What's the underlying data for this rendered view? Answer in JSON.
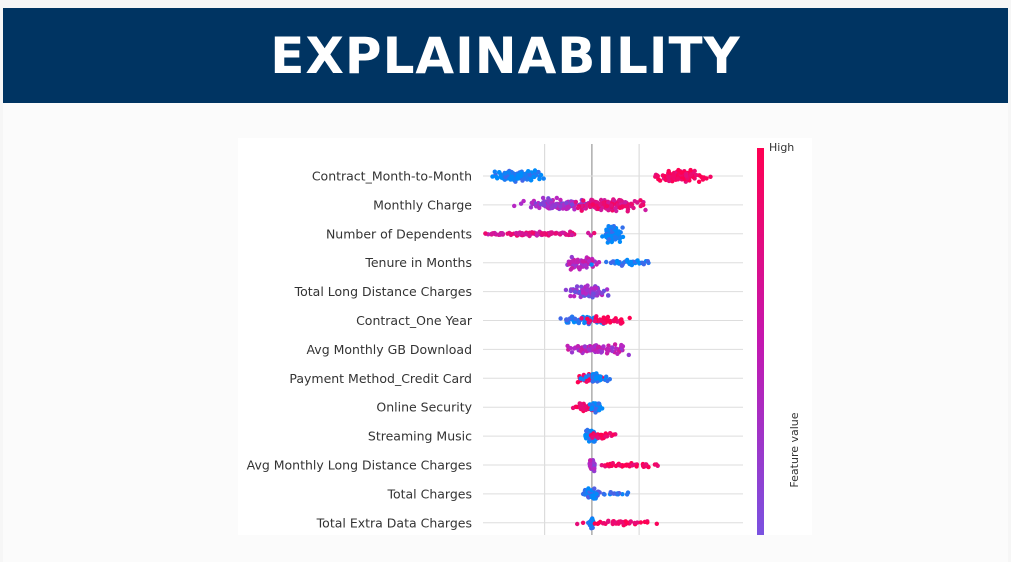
{
  "page": {
    "title": "EXPLAINABILITY"
  },
  "colors": {
    "banner": "#003462",
    "low": "#008bfb",
    "high": "#ff0052"
  },
  "chart_data": {
    "type": "scatter",
    "subtype": "shap-beeswarm",
    "title": "",
    "xlabel": "",
    "colorbar": {
      "label": "Feature value",
      "high_label": "High",
      "low_label": ""
    },
    "x_range": [
      -1.1,
      1.6
    ],
    "grid": true,
    "features": [
      {
        "name": "Contract_Month-to-Month",
        "clusters": [
          {
            "center": -0.8,
            "spread": 0.42,
            "count": 150,
            "color": 0.05,
            "height": 10
          },
          {
            "center": 0.95,
            "spread": 0.4,
            "count": 130,
            "color": 0.95,
            "height": 10
          }
        ]
      },
      {
        "name": "Monthly Charge",
        "clusters": [
          {
            "center": -0.3,
            "spread": 0.7,
            "count": 150,
            "color": 0.45,
            "height": 9
          },
          {
            "center": 0.2,
            "spread": 0.55,
            "count": 150,
            "color": 0.8,
            "height": 10
          }
        ]
      },
      {
        "name": "Number of Dependents",
        "clusters": [
          {
            "center": -0.6,
            "spread": 0.95,
            "count": 110,
            "color": 0.75,
            "height": 3
          },
          {
            "center": 0.22,
            "spread": 0.15,
            "count": 110,
            "color": 0.05,
            "height": 12
          }
        ]
      },
      {
        "name": "Tenure in Months",
        "clusters": [
          {
            "center": -0.1,
            "spread": 0.3,
            "count": 70,
            "color": 0.55,
            "height": 9
          },
          {
            "center": 0.35,
            "spread": 0.45,
            "count": 40,
            "color": 0.05,
            "height": 5
          }
        ]
      },
      {
        "name": "Total Long Distance Charges",
        "clusters": [
          {
            "center": -0.05,
            "spread": 0.35,
            "count": 90,
            "color": 0.4,
            "height": 10
          }
        ]
      },
      {
        "name": "Contract_One Year",
        "clusters": [
          {
            "center": -0.1,
            "spread": 0.35,
            "count": 60,
            "color": 0.05,
            "height": 7
          },
          {
            "center": 0.15,
            "spread": 0.35,
            "count": 50,
            "color": 0.95,
            "height": 6
          }
        ]
      },
      {
        "name": "Avg Monthly GB Download",
        "clusters": [
          {
            "center": 0.0,
            "spread": 0.55,
            "count": 90,
            "color": 0.55,
            "height": 8
          }
        ]
      },
      {
        "name": "Payment Method_Credit Card",
        "clusters": [
          {
            "center": -0.03,
            "spread": 0.2,
            "count": 50,
            "color": 0.95,
            "height": 7
          },
          {
            "center": 0.05,
            "spread": 0.2,
            "count": 40,
            "color": 0.05,
            "height": 7
          }
        ]
      },
      {
        "name": "Online Security",
        "clusters": [
          {
            "center": -0.06,
            "spread": 0.2,
            "count": 50,
            "color": 0.95,
            "height": 7
          },
          {
            "center": 0.04,
            "spread": 0.1,
            "count": 50,
            "color": 0.05,
            "height": 8
          }
        ]
      },
      {
        "name": "Streaming Music",
        "clusters": [
          {
            "center": 0.0,
            "spread": 0.1,
            "count": 60,
            "color": 0.05,
            "height": 10
          },
          {
            "center": 0.1,
            "spread": 0.2,
            "count": 30,
            "color": 0.95,
            "height": 6
          }
        ]
      },
      {
        "name": "Avg Monthly Long Distance Charges",
        "clusters": [
          {
            "center": 0.0,
            "spread": 0.05,
            "count": 40,
            "color": 0.5,
            "height": 10
          },
          {
            "center": 0.35,
            "spread": 0.55,
            "count": 45,
            "color": 0.95,
            "height": 4
          }
        ]
      },
      {
        "name": "Total Charges",
        "clusters": [
          {
            "center": 0.0,
            "spread": 0.15,
            "count": 60,
            "color": 0.1,
            "height": 9
          },
          {
            "center": 0.25,
            "spread": 0.3,
            "count": 15,
            "color": 0.1,
            "height": 3
          }
        ]
      },
      {
        "name": "Total Extra Data Charges",
        "clusters": [
          {
            "center": 0.0,
            "spread": 0.05,
            "count": 40,
            "color": 0.1,
            "height": 10
          },
          {
            "center": 0.3,
            "spread": 0.6,
            "count": 50,
            "color": 0.95,
            "height": 4
          }
        ]
      }
    ]
  }
}
